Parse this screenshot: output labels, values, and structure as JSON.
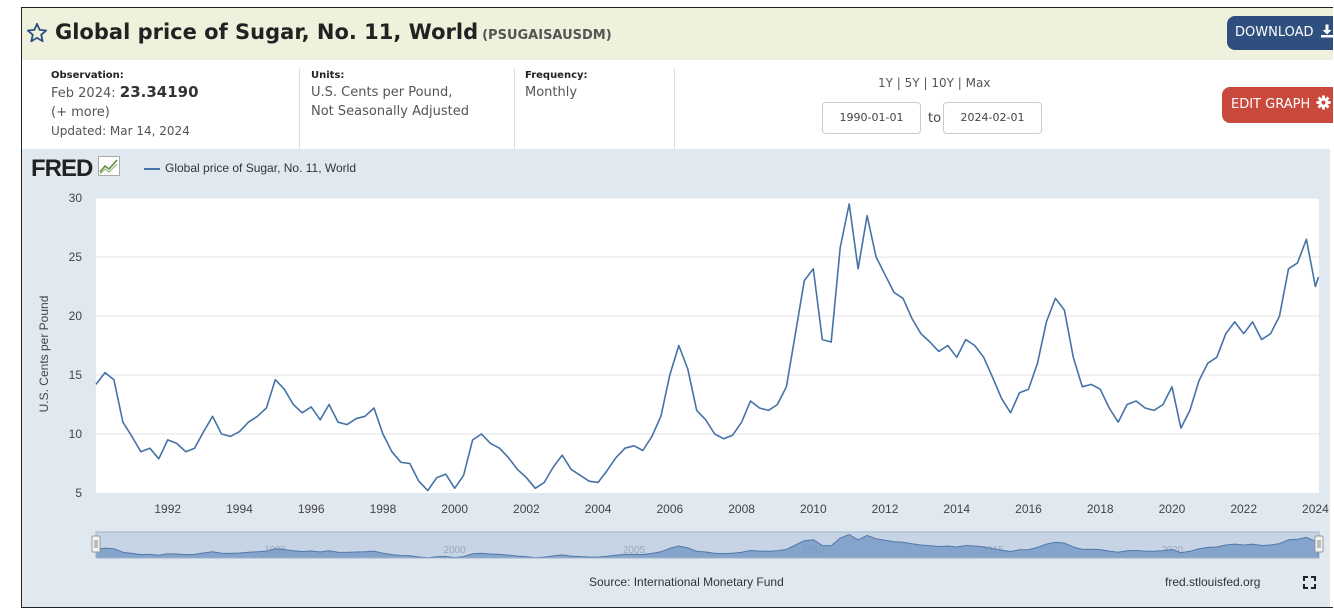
{
  "header": {
    "title": "Global price of Sugar, No. 11, World",
    "series_id": "(PSUGAISAUSDM)",
    "download_label": "DOWNLOAD"
  },
  "meta": {
    "observation_label": "Observation:",
    "observation_date": "Feb 2024:",
    "observation_value": "23.34190",
    "more": "(+ more)",
    "updated": "Updated: Mar 14, 2024",
    "units_label": "Units:",
    "units_line1": "U.S. Cents per Pound,",
    "units_line2": "Not Seasonally Adjusted",
    "frequency_label": "Frequency:",
    "frequency_value": "Monthly"
  },
  "controls": {
    "range_1y": "1Y",
    "range_5y": "5Y",
    "range_10y": "10Y",
    "range_max": "Max",
    "sep": "|",
    "start_date": "1990-01-01",
    "to_label": "to",
    "end_date": "2024-02-01",
    "edit_graph_label": "EDIT GRAPH"
  },
  "footer": {
    "source": "Source: International Monetary Fund",
    "site": "fred.stlouisfed.org"
  },
  "logo_text": "FRED",
  "colors": {
    "line": "#4572a7",
    "title_bg": "#eff1dd",
    "download_bg": "#2f4f7f",
    "edit_bg": "#c94a3d",
    "chart_bg": "#e1e9f0"
  },
  "chart_data": {
    "type": "line",
    "series": [
      {
        "name": "Global price of Sugar, No. 11, World",
        "points": [
          [
            1990.0,
            14.2
          ],
          [
            1990.25,
            15.2
          ],
          [
            1990.5,
            14.6
          ],
          [
            1990.75,
            11.0
          ],
          [
            1991.0,
            9.8
          ],
          [
            1991.25,
            8.5
          ],
          [
            1991.5,
            8.8
          ],
          [
            1991.75,
            7.9
          ],
          [
            1992.0,
            9.5
          ],
          [
            1992.25,
            9.2
          ],
          [
            1992.5,
            8.5
          ],
          [
            1992.75,
            8.8
          ],
          [
            1993.0,
            10.2
          ],
          [
            1993.25,
            11.5
          ],
          [
            1993.5,
            10.0
          ],
          [
            1993.75,
            9.8
          ],
          [
            1994.0,
            10.2
          ],
          [
            1994.25,
            11.0
          ],
          [
            1994.5,
            11.5
          ],
          [
            1994.75,
            12.2
          ],
          [
            1995.0,
            14.6
          ],
          [
            1995.25,
            13.8
          ],
          [
            1995.5,
            12.5
          ],
          [
            1995.75,
            11.8
          ],
          [
            1996.0,
            12.3
          ],
          [
            1996.25,
            11.2
          ],
          [
            1996.5,
            12.5
          ],
          [
            1996.75,
            11.0
          ],
          [
            1997.0,
            10.8
          ],
          [
            1997.25,
            11.3
          ],
          [
            1997.5,
            11.5
          ],
          [
            1997.75,
            12.2
          ],
          [
            1998.0,
            10.0
          ],
          [
            1998.25,
            8.5
          ],
          [
            1998.5,
            7.6
          ],
          [
            1998.75,
            7.5
          ],
          [
            1999.0,
            6.0
          ],
          [
            1999.25,
            5.2
          ],
          [
            1999.5,
            6.3
          ],
          [
            1999.75,
            6.6
          ],
          [
            2000.0,
            5.4
          ],
          [
            2000.25,
            6.5
          ],
          [
            2000.5,
            9.5
          ],
          [
            2000.75,
            10.0
          ],
          [
            2001.0,
            9.2
          ],
          [
            2001.25,
            8.8
          ],
          [
            2001.5,
            8.0
          ],
          [
            2001.75,
            7.0
          ],
          [
            2002.0,
            6.3
          ],
          [
            2002.25,
            5.4
          ],
          [
            2002.5,
            5.9
          ],
          [
            2002.75,
            7.2
          ],
          [
            2003.0,
            8.2
          ],
          [
            2003.25,
            7.0
          ],
          [
            2003.5,
            6.5
          ],
          [
            2003.75,
            6.0
          ],
          [
            2004.0,
            5.9
          ],
          [
            2004.25,
            6.9
          ],
          [
            2004.5,
            8.0
          ],
          [
            2004.75,
            8.8
          ],
          [
            2005.0,
            9.0
          ],
          [
            2005.25,
            8.6
          ],
          [
            2005.5,
            9.8
          ],
          [
            2005.75,
            11.5
          ],
          [
            2006.0,
            15.0
          ],
          [
            2006.25,
            17.5
          ],
          [
            2006.5,
            15.5
          ],
          [
            2006.75,
            12.0
          ],
          [
            2007.0,
            11.2
          ],
          [
            2007.25,
            10.0
          ],
          [
            2007.5,
            9.6
          ],
          [
            2007.75,
            9.9
          ],
          [
            2008.0,
            11.0
          ],
          [
            2008.25,
            12.8
          ],
          [
            2008.5,
            12.2
          ],
          [
            2008.75,
            12.0
          ],
          [
            2009.0,
            12.5
          ],
          [
            2009.25,
            14.0
          ],
          [
            2009.5,
            18.5
          ],
          [
            2009.75,
            23.0
          ],
          [
            2010.0,
            24.0
          ],
          [
            2010.25,
            18.0
          ],
          [
            2010.5,
            17.8
          ],
          [
            2010.75,
            25.8
          ],
          [
            2011.0,
            29.5
          ],
          [
            2011.25,
            24.0
          ],
          [
            2011.5,
            28.5
          ],
          [
            2011.75,
            25.0
          ],
          [
            2012.0,
            23.5
          ],
          [
            2012.25,
            22.0
          ],
          [
            2012.5,
            21.5
          ],
          [
            2012.75,
            19.8
          ],
          [
            2013.0,
            18.5
          ],
          [
            2013.25,
            17.8
          ],
          [
            2013.5,
            17.0
          ],
          [
            2013.75,
            17.5
          ],
          [
            2014.0,
            16.5
          ],
          [
            2014.25,
            18.0
          ],
          [
            2014.5,
            17.5
          ],
          [
            2014.75,
            16.5
          ],
          [
            2015.0,
            14.8
          ],
          [
            2015.25,
            13.0
          ],
          [
            2015.5,
            11.8
          ],
          [
            2015.75,
            13.5
          ],
          [
            2016.0,
            13.8
          ],
          [
            2016.25,
            16.0
          ],
          [
            2016.5,
            19.5
          ],
          [
            2016.75,
            21.5
          ],
          [
            2017.0,
            20.5
          ],
          [
            2017.25,
            16.5
          ],
          [
            2017.5,
            14.0
          ],
          [
            2017.75,
            14.2
          ],
          [
            2018.0,
            13.8
          ],
          [
            2018.25,
            12.2
          ],
          [
            2018.5,
            11.0
          ],
          [
            2018.75,
            12.5
          ],
          [
            2019.0,
            12.8
          ],
          [
            2019.25,
            12.2
          ],
          [
            2019.5,
            12.0
          ],
          [
            2019.75,
            12.5
          ],
          [
            2020.0,
            14.0
          ],
          [
            2020.25,
            10.5
          ],
          [
            2020.5,
            12.0
          ],
          [
            2020.75,
            14.5
          ],
          [
            2021.0,
            16.0
          ],
          [
            2021.25,
            16.5
          ],
          [
            2021.5,
            18.5
          ],
          [
            2021.75,
            19.5
          ],
          [
            2022.0,
            18.5
          ],
          [
            2022.25,
            19.5
          ],
          [
            2022.5,
            18.0
          ],
          [
            2022.75,
            18.5
          ],
          [
            2023.0,
            20.0
          ],
          [
            2023.25,
            24.0
          ],
          [
            2023.5,
            24.5
          ],
          [
            2023.75,
            26.5
          ],
          [
            2024.0,
            22.5
          ],
          [
            2024.083,
            23.3
          ]
        ]
      }
    ],
    "xlim": [
      1990,
      2024.1
    ],
    "ylim": [
      5,
      30
    ],
    "x_ticks": [
      "1992",
      "1994",
      "1996",
      "1998",
      "2000",
      "2002",
      "2004",
      "2006",
      "2008",
      "2010",
      "2012",
      "2014",
      "2016",
      "2018",
      "2020",
      "2022",
      "2024"
    ],
    "y_ticks": [
      "5",
      "10",
      "15",
      "20",
      "25",
      "30"
    ],
    "ylabel": "U.S. Cents per Pound",
    "navigator_ticks": [
      "1995",
      "2000",
      "2005",
      "2010",
      "2015",
      "2020"
    ],
    "grid": true,
    "legend_placement": "top-left"
  }
}
